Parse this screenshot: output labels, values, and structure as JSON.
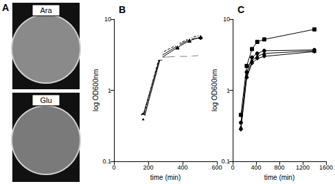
{
  "panel_a": {
    "title": "A",
    "plates": [
      {
        "label": "Ara"
      },
      {
        "label": "Glu"
      }
    ]
  },
  "chart_data": [
    {
      "type": "line",
      "title": "B",
      "xlabel": "time (min)",
      "ylabel": "log OD600nm",
      "log": "y",
      "grid": false,
      "x": [
        170,
        270,
        370,
        440,
        505
      ],
      "xlim": [
        0,
        600
      ],
      "xticks": [
        0,
        200,
        400,
        600
      ],
      "ylim": [
        0.1,
        10
      ],
      "yticks": [
        0.1,
        1,
        10
      ],
      "series": [
        {
          "color": "#000000",
          "marker": "circle",
          "line_style": "solid",
          "values": [
            0.45,
            3.0,
            4.2,
            5.2,
            5.5
          ]
        },
        {
          "color": "#000000",
          "marker": "open_circle",
          "line_style": "dashed",
          "values": [
            0.42,
            3.3,
            4.4,
            5.4,
            6.0
          ]
        },
        {
          "color": "#000000",
          "marker": "triangle",
          "line_style": "solid",
          "values": [
            0.38,
            2.8,
            4.0,
            5.0,
            5.6
          ]
        },
        {
          "color": "#000000",
          "marker": "open_square",
          "line_style": "dotted",
          "values": [
            0.35,
            2.9,
            3.0,
            3.0,
            3.1
          ]
        }
      ]
    },
    {
      "type": "line",
      "title": "C",
      "xlabel": "time (min)",
      "ylabel": "log OD600nm",
      "log": "y",
      "grid": false,
      "x": [
        140,
        240,
        330,
        420,
        540,
        1400
      ],
      "xlim": [
        0,
        1600
      ],
      "xticks": [
        0,
        400,
        800,
        1200,
        1600
      ],
      "ylim": [
        0.1,
        10
      ],
      "yticks": [
        0.1,
        1,
        10
      ],
      "series": [
        {
          "color": "#000000",
          "marker": "square",
          "line_style": "solid",
          "values": [
            0.45,
            2.2,
            3.8,
            4.8,
            5.2,
            7.2
          ]
        },
        {
          "color": "#000000",
          "marker": "circle",
          "line_style": "solid",
          "values": [
            0.35,
            1.8,
            2.9,
            3.3,
            3.6,
            3.7
          ]
        },
        {
          "color": "#000000",
          "marker": "triangle",
          "line_style": "solid",
          "values": [
            0.3,
            1.6,
            2.6,
            3.0,
            3.3,
            3.6
          ]
        },
        {
          "color": "#000000",
          "marker": "diamond",
          "line_style": "solid",
          "values": [
            0.28,
            1.5,
            2.4,
            2.8,
            3.0,
            3.5
          ]
        }
      ]
    }
  ]
}
